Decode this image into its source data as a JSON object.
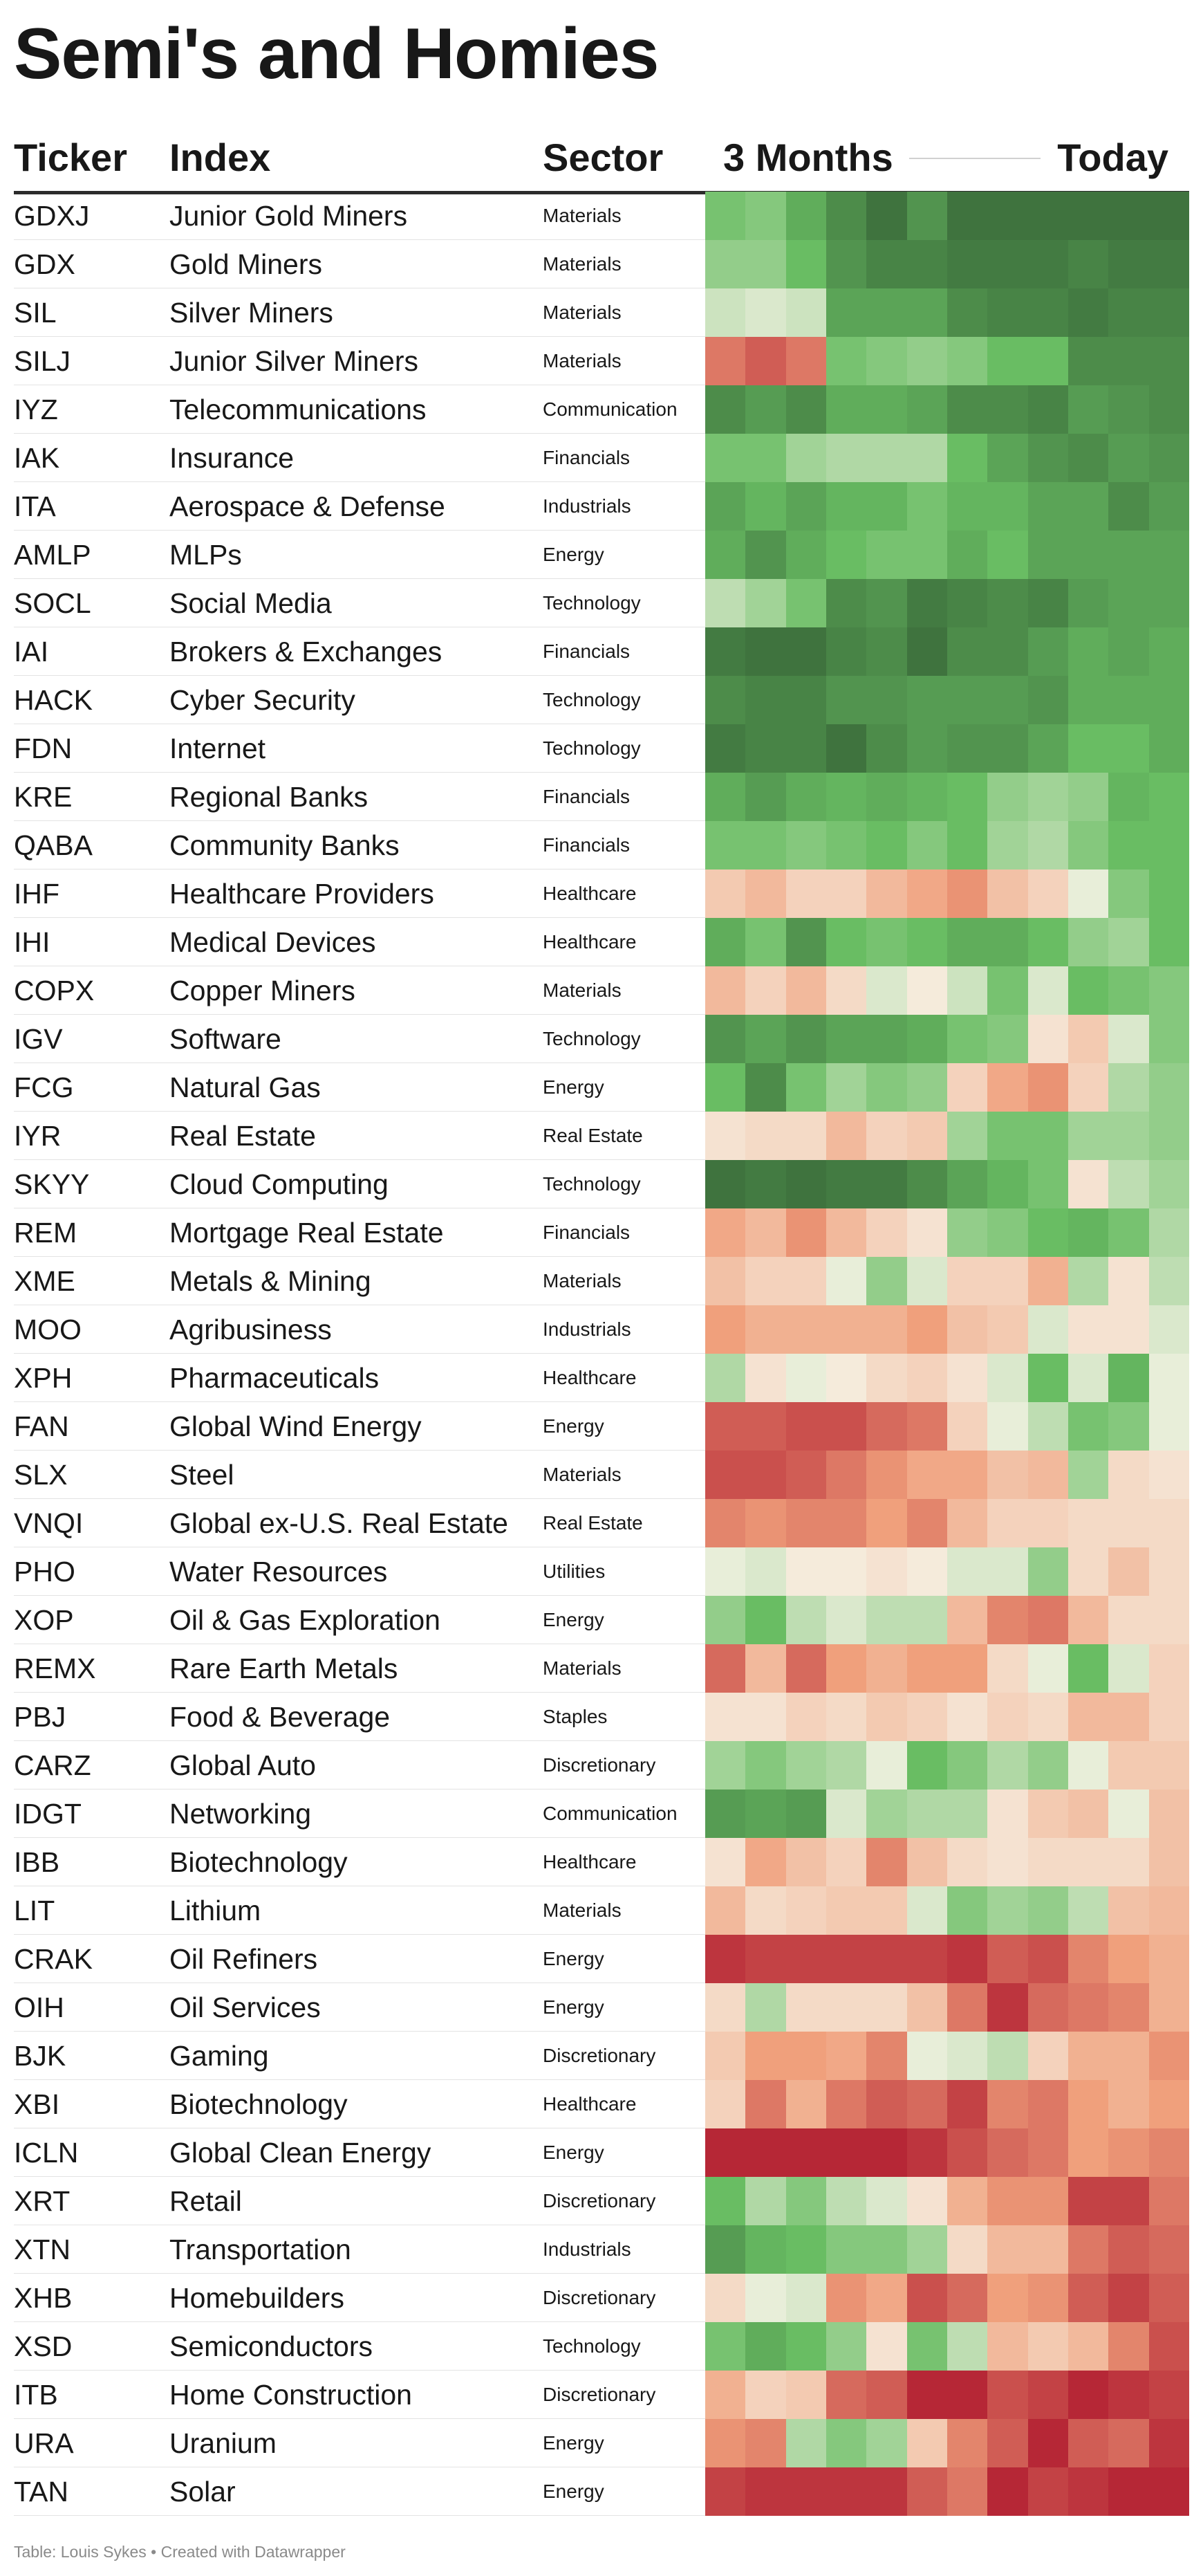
{
  "chart_data": {
    "type": "heatmap",
    "title": "Semi's and Homies",
    "columns": {
      "ticker": "Ticker",
      "index": "Index",
      "sector": "Sector",
      "period_start": "3 Months",
      "period_end": "Today"
    },
    "value_scale": "relative performance; green = strong, red = weak",
    "value_range": [
      -1,
      1
    ],
    "colors": {
      "strong_high": "#3a6b3a",
      "high": "#69bd63",
      "neutral": "#f6f3e6",
      "low": "#f0a07c",
      "strong_low": "#b01a2e"
    },
    "rows": [
      {
        "ticker": "GDXJ",
        "index": "Junior Gold Miners",
        "sector": "Materials",
        "values": [
          0.45,
          0.4,
          0.6,
          0.8,
          0.95,
          0.75,
          0.95,
          0.95,
          0.95,
          0.95,
          0.95,
          0.95
        ]
      },
      {
        "ticker": "GDX",
        "index": "Gold Miners",
        "sector": "Materials",
        "values": [
          0.35,
          0.35,
          0.5,
          0.75,
          0.85,
          0.85,
          0.9,
          0.9,
          0.9,
          0.85,
          0.9,
          0.9
        ]
      },
      {
        "ticker": "SIL",
        "index": "Silver Miners",
        "sector": "Materials",
        "values": [
          0.15,
          0.1,
          0.15,
          0.65,
          0.65,
          0.65,
          0.8,
          0.85,
          0.85,
          0.9,
          0.85,
          0.85
        ]
      },
      {
        "ticker": "SILJ",
        "index": "Junior Silver Miners",
        "sector": "Materials",
        "values": [
          -0.65,
          -0.75,
          -0.65,
          0.45,
          0.4,
          0.35,
          0.4,
          0.5,
          0.5,
          0.8,
          0.8,
          0.8
        ]
      },
      {
        "ticker": "IYZ",
        "index": "Telecommunications",
        "sector": "Communication",
        "values": [
          0.8,
          0.7,
          0.8,
          0.6,
          0.6,
          0.65,
          0.8,
          0.8,
          0.85,
          0.7,
          0.75,
          0.8
        ]
      },
      {
        "ticker": "IAK",
        "index": "Insurance",
        "sector": "Financials",
        "values": [
          0.45,
          0.45,
          0.3,
          0.25,
          0.25,
          0.25,
          0.5,
          0.65,
          0.75,
          0.8,
          0.7,
          0.75
        ]
      },
      {
        "ticker": "ITA",
        "index": "Aerospace & Defense",
        "sector": "Industrials",
        "values": [
          0.65,
          0.55,
          0.65,
          0.55,
          0.55,
          0.45,
          0.55,
          0.55,
          0.65,
          0.65,
          0.8,
          0.7
        ]
      },
      {
        "ticker": "AMLP",
        "index": "MLPs",
        "sector": "Energy",
        "values": [
          0.6,
          0.75,
          0.6,
          0.5,
          0.45,
          0.45,
          0.6,
          0.5,
          0.65,
          0.65,
          0.65,
          0.65
        ]
      },
      {
        "ticker": "SOCL",
        "index": "Social Media",
        "sector": "Technology",
        "values": [
          0.2,
          0.3,
          0.45,
          0.8,
          0.75,
          0.9,
          0.85,
          0.8,
          0.85,
          0.7,
          0.65,
          0.65
        ]
      },
      {
        "ticker": "IAI",
        "index": "Brokers & Exchanges",
        "sector": "Financials",
        "values": [
          0.9,
          0.95,
          0.95,
          0.85,
          0.8,
          0.95,
          0.8,
          0.8,
          0.7,
          0.6,
          0.65,
          0.6
        ]
      },
      {
        "ticker": "HACK",
        "index": "Cyber Security",
        "sector": "Technology",
        "values": [
          0.8,
          0.85,
          0.85,
          0.75,
          0.75,
          0.7,
          0.7,
          0.7,
          0.75,
          0.6,
          0.6,
          0.6
        ]
      },
      {
        "ticker": "FDN",
        "index": "Internet",
        "sector": "Technology",
        "values": [
          0.9,
          0.85,
          0.85,
          0.95,
          0.8,
          0.7,
          0.75,
          0.75,
          0.65,
          0.5,
          0.5,
          0.6
        ]
      },
      {
        "ticker": "KRE",
        "index": "Regional Banks",
        "sector": "Financials",
        "values": [
          0.6,
          0.7,
          0.6,
          0.55,
          0.6,
          0.55,
          0.5,
          0.35,
          0.3,
          0.35,
          0.55,
          0.5
        ]
      },
      {
        "ticker": "QABA",
        "index": "Community Banks",
        "sector": "Financials",
        "values": [
          0.45,
          0.45,
          0.4,
          0.45,
          0.5,
          0.4,
          0.5,
          0.3,
          0.25,
          0.4,
          0.5,
          0.5
        ]
      },
      {
        "ticker": "IHF",
        "index": "Healthcare Providers",
        "sector": "Healthcare",
        "values": [
          -0.25,
          -0.35,
          -0.2,
          -0.2,
          -0.35,
          -0.45,
          -0.55,
          -0.3,
          -0.2,
          0.05,
          0.4,
          0.5
        ]
      },
      {
        "ticker": "IHI",
        "index": "Medical Devices",
        "sector": "Healthcare",
        "values": [
          0.6,
          0.45,
          0.75,
          0.5,
          0.45,
          0.5,
          0.6,
          0.6,
          0.5,
          0.35,
          0.3,
          0.5
        ]
      },
      {
        "ticker": "COPX",
        "index": "Copper Miners",
        "sector": "Materials",
        "values": [
          -0.35,
          -0.2,
          -0.35,
          -0.15,
          0.1,
          -0.05,
          0.15,
          0.45,
          0.1,
          0.5,
          0.45,
          0.4
        ]
      },
      {
        "ticker": "IGV",
        "index": "Software",
        "sector": "Technology",
        "values": [
          0.75,
          0.65,
          0.75,
          0.65,
          0.65,
          0.6,
          0.45,
          0.4,
          -0.1,
          -0.25,
          0.1,
          0.4
        ]
      },
      {
        "ticker": "FCG",
        "index": "Natural Gas",
        "sector": "Energy",
        "values": [
          0.5,
          0.8,
          0.45,
          0.3,
          0.4,
          0.35,
          -0.2,
          -0.45,
          -0.55,
          -0.2,
          0.25,
          0.35
        ]
      },
      {
        "ticker": "IYR",
        "index": "Real Estate",
        "sector": "Real Estate",
        "values": [
          -0.1,
          -0.15,
          -0.15,
          -0.35,
          -0.2,
          -0.25,
          0.3,
          0.45,
          0.45,
          0.3,
          0.3,
          0.35
        ]
      },
      {
        "ticker": "SKYY",
        "index": "Cloud Computing",
        "sector": "Technology",
        "values": [
          0.95,
          0.9,
          0.95,
          0.9,
          0.9,
          0.8,
          0.65,
          0.55,
          0.45,
          -0.1,
          0.2,
          0.3
        ]
      },
      {
        "ticker": "REM",
        "index": "Mortgage Real Estate",
        "sector": "Financials",
        "values": [
          -0.45,
          -0.35,
          -0.55,
          -0.35,
          -0.2,
          -0.1,
          0.35,
          0.4,
          0.5,
          0.55,
          0.45,
          0.25
        ]
      },
      {
        "ticker": "XME",
        "index": "Metals & Mining",
        "sector": "Materials",
        "values": [
          -0.3,
          -0.2,
          -0.2,
          0.05,
          0.35,
          0.1,
          -0.2,
          -0.2,
          -0.4,
          0.25,
          -0.1,
          0.2
        ]
      },
      {
        "ticker": "MOO",
        "index": "Agribusiness",
        "sector": "Industrials",
        "values": [
          -0.5,
          -0.4,
          -0.4,
          -0.4,
          -0.4,
          -0.5,
          -0.3,
          -0.25,
          0.1,
          -0.1,
          -0.1,
          0.1
        ]
      },
      {
        "ticker": "XPH",
        "index": "Pharmaceuticals",
        "sector": "Healthcare",
        "values": [
          0.25,
          -0.1,
          0.05,
          -0.05,
          -0.15,
          -0.2,
          -0.1,
          0.1,
          0.5,
          0.1,
          0.55,
          0.05
        ]
      },
      {
        "ticker": "FAN",
        "index": "Global Wind Energy",
        "sector": "Energy",
        "values": [
          -0.75,
          -0.75,
          -0.8,
          -0.8,
          -0.7,
          -0.65,
          -0.2,
          0.05,
          0.2,
          0.45,
          0.4,
          0.05
        ]
      },
      {
        "ticker": "SLX",
        "index": "Steel",
        "sector": "Materials",
        "values": [
          -0.8,
          -0.8,
          -0.75,
          -0.65,
          -0.55,
          -0.45,
          -0.45,
          -0.3,
          -0.35,
          0.3,
          -0.15,
          -0.1
        ]
      },
      {
        "ticker": "VNQI",
        "index": "Global ex-U.S. Real Estate",
        "sector": "Real Estate",
        "values": [
          -0.6,
          -0.55,
          -0.6,
          -0.6,
          -0.5,
          -0.6,
          -0.35,
          -0.2,
          -0.2,
          -0.15,
          -0.15,
          -0.15
        ]
      },
      {
        "ticker": "PHO",
        "index": "Water Resources",
        "sector": "Utilities",
        "values": [
          0.05,
          0.1,
          -0.05,
          -0.05,
          -0.1,
          -0.05,
          0.1,
          0.1,
          0.35,
          -0.15,
          -0.3,
          -0.15
        ]
      },
      {
        "ticker": "XOP",
        "index": "Oil & Gas Exploration",
        "sector": "Energy",
        "values": [
          0.35,
          0.5,
          0.2,
          0.1,
          0.2,
          0.2,
          -0.35,
          -0.6,
          -0.65,
          -0.35,
          -0.15,
          -0.15
        ]
      },
      {
        "ticker": "REMX",
        "index": "Rare Earth Metals",
        "sector": "Materials",
        "values": [
          -0.7,
          -0.35,
          -0.7,
          -0.5,
          -0.4,
          -0.5,
          -0.5,
          -0.15,
          0.05,
          0.5,
          0.1,
          -0.2
        ]
      },
      {
        "ticker": "PBJ",
        "index": "Food & Beverage",
        "sector": "Staples",
        "values": [
          -0.1,
          -0.1,
          -0.2,
          -0.15,
          -0.25,
          -0.2,
          -0.1,
          -0.2,
          -0.15,
          -0.35,
          -0.35,
          -0.2
        ]
      },
      {
        "ticker": "CARZ",
        "index": "Global Auto",
        "sector": "Discretionary",
        "values": [
          0.3,
          0.4,
          0.3,
          0.25,
          0.05,
          0.5,
          0.4,
          0.25,
          0.35,
          0.05,
          -0.25,
          -0.25
        ]
      },
      {
        "ticker": "IDGT",
        "index": "Networking",
        "sector": "Communication",
        "values": [
          0.7,
          0.65,
          0.7,
          0.1,
          0.3,
          0.25,
          0.25,
          -0.1,
          -0.25,
          -0.3,
          0.05,
          -0.3
        ]
      },
      {
        "ticker": "IBB",
        "index": "Biotechnology",
        "sector": "Healthcare",
        "values": [
          -0.1,
          -0.45,
          -0.3,
          -0.2,
          -0.6,
          -0.3,
          -0.15,
          -0.1,
          -0.15,
          -0.15,
          -0.15,
          -0.3
        ]
      },
      {
        "ticker": "LIT",
        "index": "Lithium",
        "sector": "Materials",
        "values": [
          -0.35,
          -0.15,
          -0.2,
          -0.25,
          -0.25,
          0.1,
          0.4,
          0.3,
          0.35,
          0.2,
          -0.3,
          -0.35
        ]
      },
      {
        "ticker": "CRAK",
        "index": "Oil Refiners",
        "sector": "Energy",
        "values": [
          -0.9,
          -0.85,
          -0.85,
          -0.85,
          -0.85,
          -0.85,
          -0.9,
          -0.75,
          -0.8,
          -0.6,
          -0.5,
          -0.4
        ]
      },
      {
        "ticker": "OIH",
        "index": "Oil Services",
        "sector": "Energy",
        "values": [
          -0.15,
          0.25,
          -0.15,
          -0.15,
          -0.15,
          -0.3,
          -0.65,
          -0.9,
          -0.7,
          -0.65,
          -0.6,
          -0.4
        ]
      },
      {
        "ticker": "BJK",
        "index": "Gaming",
        "sector": "Discretionary",
        "values": [
          -0.25,
          -0.5,
          -0.5,
          -0.45,
          -0.6,
          0.05,
          0.1,
          0.2,
          -0.2,
          -0.4,
          -0.4,
          -0.55
        ]
      },
      {
        "ticker": "XBI",
        "index": "Biotechnology",
        "sector": "Healthcare",
        "values": [
          -0.2,
          -0.65,
          -0.4,
          -0.65,
          -0.75,
          -0.7,
          -0.85,
          -0.6,
          -0.65,
          -0.5,
          -0.4,
          -0.5
        ]
      },
      {
        "ticker": "ICLN",
        "index": "Global Clean Energy",
        "sector": "Energy",
        "values": [
          -0.95,
          -0.95,
          -0.95,
          -0.95,
          -0.95,
          -0.9,
          -0.8,
          -0.7,
          -0.65,
          -0.5,
          -0.55,
          -0.6
        ]
      },
      {
        "ticker": "XRT",
        "index": "Retail",
        "sector": "Discretionary",
        "values": [
          0.5,
          0.25,
          0.4,
          0.2,
          0.1,
          -0.1,
          -0.4,
          -0.55,
          -0.55,
          -0.85,
          -0.85,
          -0.65
        ]
      },
      {
        "ticker": "XTN",
        "index": "Transportation",
        "sector": "Industrials",
        "values": [
          0.7,
          0.55,
          0.5,
          0.4,
          0.4,
          0.3,
          -0.15,
          -0.35,
          -0.35,
          -0.65,
          -0.75,
          -0.7
        ]
      },
      {
        "ticker": "XHB",
        "index": "Homebuilders",
        "sector": "Discretionary",
        "values": [
          -0.15,
          0.05,
          0.1,
          -0.55,
          -0.45,
          -0.8,
          -0.7,
          -0.5,
          -0.55,
          -0.75,
          -0.85,
          -0.75
        ]
      },
      {
        "ticker": "XSD",
        "index": "Semiconductors",
        "sector": "Technology",
        "values": [
          0.45,
          0.6,
          0.5,
          0.35,
          -0.1,
          0.45,
          0.2,
          -0.35,
          -0.25,
          -0.35,
          -0.6,
          -0.8
        ]
      },
      {
        "ticker": "ITB",
        "index": "Home Construction",
        "sector": "Discretionary",
        "values": [
          -0.4,
          -0.2,
          -0.25,
          -0.7,
          -0.75,
          -0.95,
          -0.95,
          -0.8,
          -0.85,
          -0.95,
          -0.9,
          -0.85
        ]
      },
      {
        "ticker": "URA",
        "index": "Uranium",
        "sector": "Energy",
        "values": [
          -0.55,
          -0.6,
          0.25,
          0.4,
          0.3,
          -0.25,
          -0.6,
          -0.75,
          -0.95,
          -0.75,
          -0.7,
          -0.9
        ]
      },
      {
        "ticker": "TAN",
        "index": "Solar",
        "sector": "Energy",
        "values": [
          -0.85,
          -0.9,
          -0.9,
          -0.9,
          -0.9,
          -0.75,
          -0.65,
          -0.95,
          -0.85,
          -0.9,
          -0.95,
          -0.95
        ]
      }
    ]
  },
  "footer": "Table: Louis Sykes • Created with Datawrapper"
}
